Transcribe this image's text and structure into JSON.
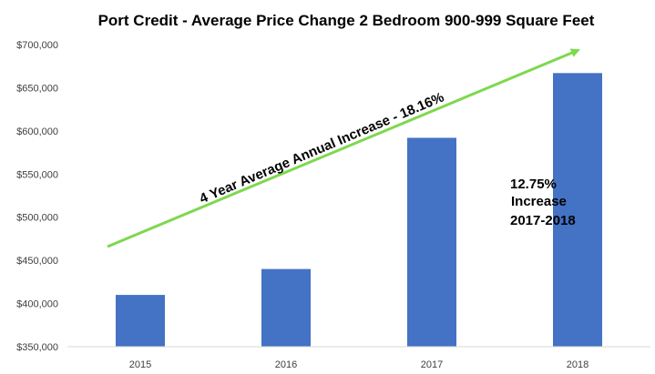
{
  "chart_data": {
    "type": "bar",
    "title": "Port Credit - Average Price Change 2 Bedroom 900-999 Square Feet",
    "xlabel": "",
    "ylabel": "",
    "categories": [
      "2015",
      "2016",
      "2017",
      "2018"
    ],
    "values": [
      410000,
      440000,
      592000,
      667000
    ],
    "ylim": [
      350000,
      700000
    ],
    "y_ticks": [
      350000,
      400000,
      450000,
      500000,
      550000,
      600000,
      650000,
      700000
    ],
    "y_tick_labels": [
      "$350,000",
      "$400,000",
      "$450,000",
      "$500,000",
      "$550,000",
      "$600,000",
      "$650,000",
      "$700,000"
    ],
    "grid": false,
    "legend": "none",
    "bar_color": "#4472C4",
    "trend_arrow_color": "#7ED84F",
    "annotations": {
      "trend_label": "4 Year Average Annual Increase - 18.16%",
      "increase_line1": "12.75%",
      "increase_line2": "Increase",
      "increase_line3": "2017-2018"
    }
  }
}
